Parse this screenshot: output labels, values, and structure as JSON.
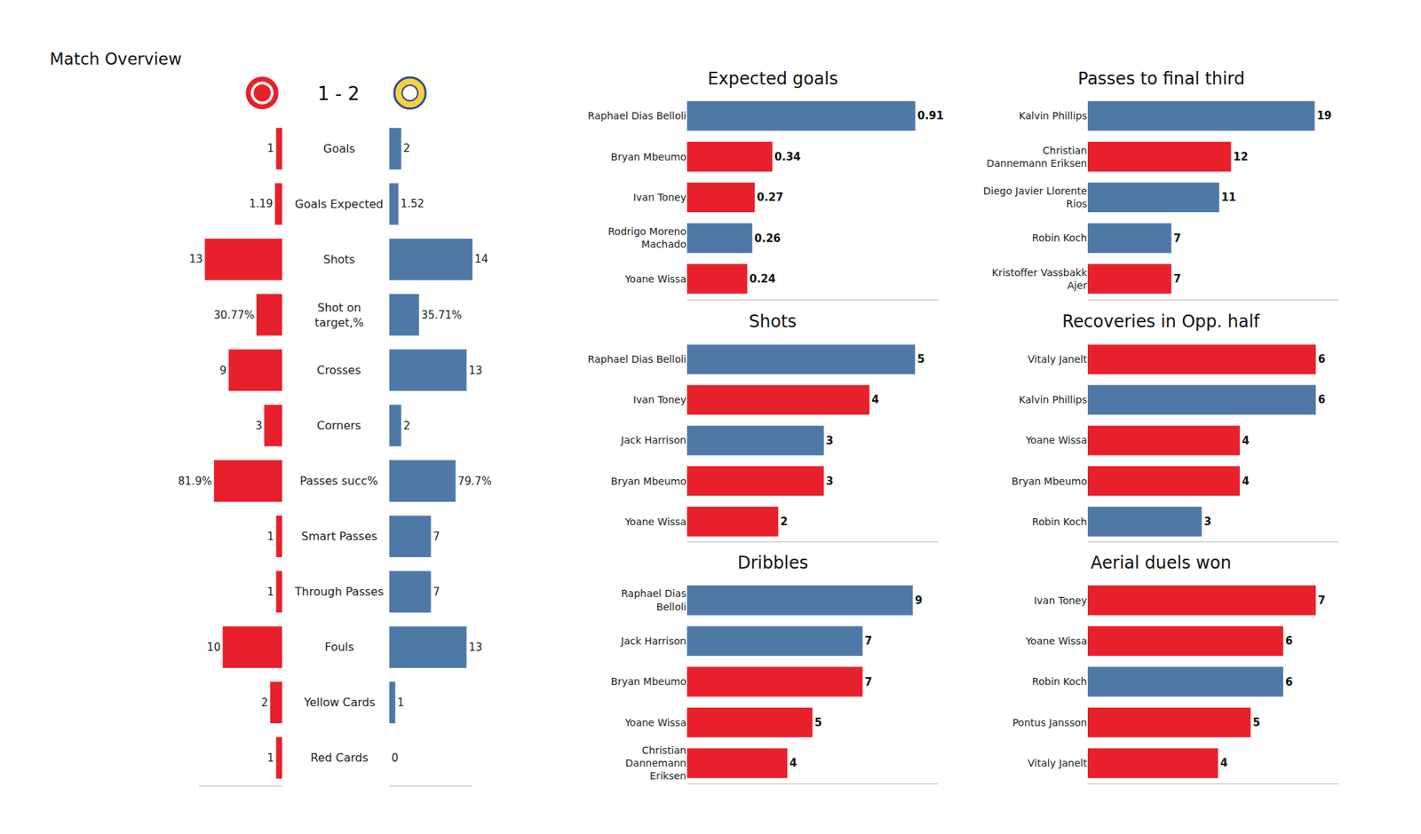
{
  "chart_data": [
    {
      "type": "bar",
      "orientation": "horizontal",
      "title": "Match Overview",
      "subtitle": "1 - 2",
      "colors": [
        "#e8202b",
        "#4e79a7"
      ],
      "data_labels": true,
      "tick_labels": false,
      "rows": [
        {
          "label": "Goals",
          "values": [
            1,
            2
          ],
          "xlim": [
            0,
            14
          ]
        },
        {
          "label": "Goals Expected",
          "values": [
            1.19,
            1.52
          ],
          "xlim": [
            0,
            14
          ]
        },
        {
          "label": "Shots",
          "values": [
            13,
            14
          ],
          "xlim": [
            0,
            14
          ]
        },
        {
          "label": "Shot on\ntarget,%",
          "values": [
            30.77,
            35.71
          ],
          "value_labels": [
            "30.77%",
            "35.71%"
          ],
          "xlim": [
            0,
            100
          ]
        },
        {
          "label": "Crosses",
          "values": [
            9,
            13
          ],
          "xlim": [
            0,
            14
          ]
        },
        {
          "label": "Corners",
          "values": [
            3,
            2
          ],
          "xlim": [
            0,
            14
          ]
        },
        {
          "label": "Passes succ%",
          "values": [
            81.9,
            79.7
          ],
          "value_labels": [
            "81.9%",
            "79.7%"
          ],
          "xlim": [
            0,
            100
          ]
        },
        {
          "label": "Smart Passes",
          "values": [
            1,
            7
          ],
          "xlim": [
            0,
            14
          ]
        },
        {
          "label": "Through Passes",
          "values": [
            1,
            7
          ],
          "xlim": [
            0,
            14
          ]
        },
        {
          "label": "Fouls",
          "values": [
            10,
            13
          ],
          "xlim": [
            0,
            14
          ]
        },
        {
          "label": "Yellow Cards",
          "values": [
            2,
            1
          ],
          "xlim": [
            0,
            14
          ]
        },
        {
          "label": "Red Cards",
          "values": [
            1,
            0
          ],
          "xlim": [
            0,
            14
          ]
        }
      ]
    },
    {
      "type": "bar",
      "orientation": "horizontal",
      "title": "Expected goals",
      "data_labels": true,
      "tick_labels": "y",
      "categories": [
        "Raphael Dias Belloli",
        "Bryan Mbeumo",
        "Ivan Toney",
        "Rodrigo Moreno\nMachado",
        "Yoane Wissa"
      ],
      "values": [
        0.91,
        0.34,
        0.27,
        0.26,
        0.24
      ],
      "colors": [
        "#4e79a7",
        "#e8202b",
        "#e8202b",
        "#4e79a7",
        "#e8202b"
      ],
      "xlim": [
        0,
        1
      ]
    },
    {
      "type": "bar",
      "orientation": "horizontal",
      "title": "Passes to final third",
      "data_labels": true,
      "tick_labels": "y",
      "categories": [
        "Kalvin Phillips",
        "Christian\nDannemann Eriksen",
        "Diego Javier Llorente\nRíos",
        "Robin Koch",
        "Kristoffer Vassbakk\nAjer"
      ],
      "values": [
        19,
        12,
        11,
        7,
        7
      ],
      "colors": [
        "#4e79a7",
        "#e8202b",
        "#4e79a7",
        "#4e79a7",
        "#e8202b"
      ],
      "xlim": [
        0,
        21
      ]
    },
    {
      "type": "bar",
      "orientation": "horizontal",
      "title": "Shots",
      "data_labels": true,
      "tick_labels": "y",
      "categories": [
        "Raphael Dias Belloli",
        "Ivan Toney",
        "Jack Harrison",
        "Bryan Mbeumo",
        "Yoane Wissa"
      ],
      "values": [
        5,
        4,
        3,
        3,
        2
      ],
      "colors": [
        "#4e79a7",
        "#e8202b",
        "#4e79a7",
        "#e8202b",
        "#e8202b"
      ],
      "xlim": [
        0,
        5.5
      ]
    },
    {
      "type": "bar",
      "orientation": "horizontal",
      "title": "Recoveries in Opp. half",
      "data_labels": true,
      "tick_labels": "y",
      "categories": [
        "Vitaly Janelt",
        "Kalvin Phillips",
        "Yoane Wissa",
        "Bryan Mbeumo",
        "Robin Koch"
      ],
      "values": [
        6,
        6,
        4,
        4,
        3
      ],
      "colors": [
        "#e8202b",
        "#4e79a7",
        "#e8202b",
        "#e8202b",
        "#4e79a7"
      ],
      "xlim": [
        0,
        6.6
      ]
    },
    {
      "type": "bar",
      "orientation": "horizontal",
      "title": "Dribbles",
      "data_labels": true,
      "tick_labels": "y",
      "categories": [
        "Raphael Dias\nBelloli",
        "Jack Harrison",
        "Bryan Mbeumo",
        "Yoane Wissa",
        "Christian\nDannemann\nEriksen"
      ],
      "values": [
        9,
        7,
        7,
        5,
        4
      ],
      "colors": [
        "#4e79a7",
        "#4e79a7",
        "#e8202b",
        "#e8202b",
        "#e8202b"
      ],
      "xlim": [
        0,
        10
      ]
    },
    {
      "type": "bar",
      "orientation": "horizontal",
      "title": "Aerial duels won",
      "data_labels": true,
      "tick_labels": "y",
      "categories": [
        "Ivan Toney",
        "Yoane Wissa",
        "Robin Koch",
        "Pontus Jansson",
        "Vitaly Janelt"
      ],
      "values": [
        7,
        6,
        6,
        5,
        4
      ],
      "colors": [
        "#e8202b",
        "#e8202b",
        "#4e79a7",
        "#e8202b",
        "#e8202b"
      ],
      "xlim": [
        0,
        7.7
      ]
    }
  ]
}
